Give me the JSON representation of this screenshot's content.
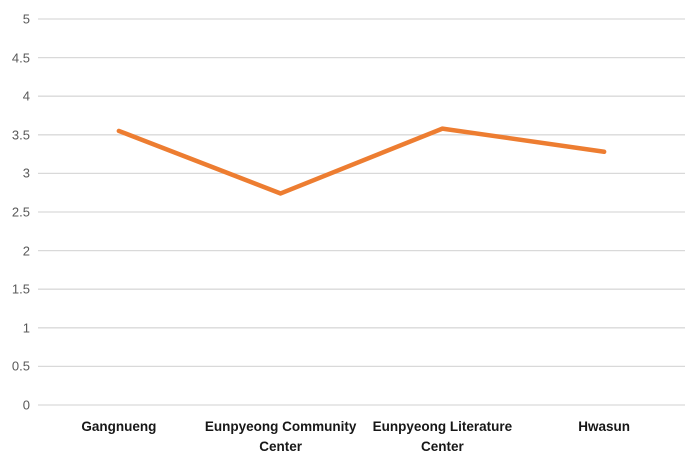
{
  "chart_data": {
    "type": "line",
    "title": "",
    "xlabel": "",
    "ylabel": "",
    "categories": [
      "Gangnueng",
      "Eunpyeong Community Center",
      "Eunpyeong Literature Center",
      "Hwasun"
    ],
    "series": [
      {
        "name": "series-1",
        "values": [
          3.55,
          2.74,
          3.58,
          3.28
        ]
      }
    ],
    "ylim": [
      0,
      5
    ],
    "ytick_step": 0.5,
    "ytick_labels": [
      "0",
      "0.5",
      "1",
      "1.5",
      "2",
      "2.5",
      "3",
      "3.5",
      "4",
      "4.5",
      "5"
    ],
    "grid": true,
    "legend": false,
    "colors": {
      "line": "#ED7D31",
      "gridline": "#D9D9D9",
      "y_tick_text": "#595959",
      "x_category_text": "#171717",
      "background": "#FFFFFF"
    }
  }
}
